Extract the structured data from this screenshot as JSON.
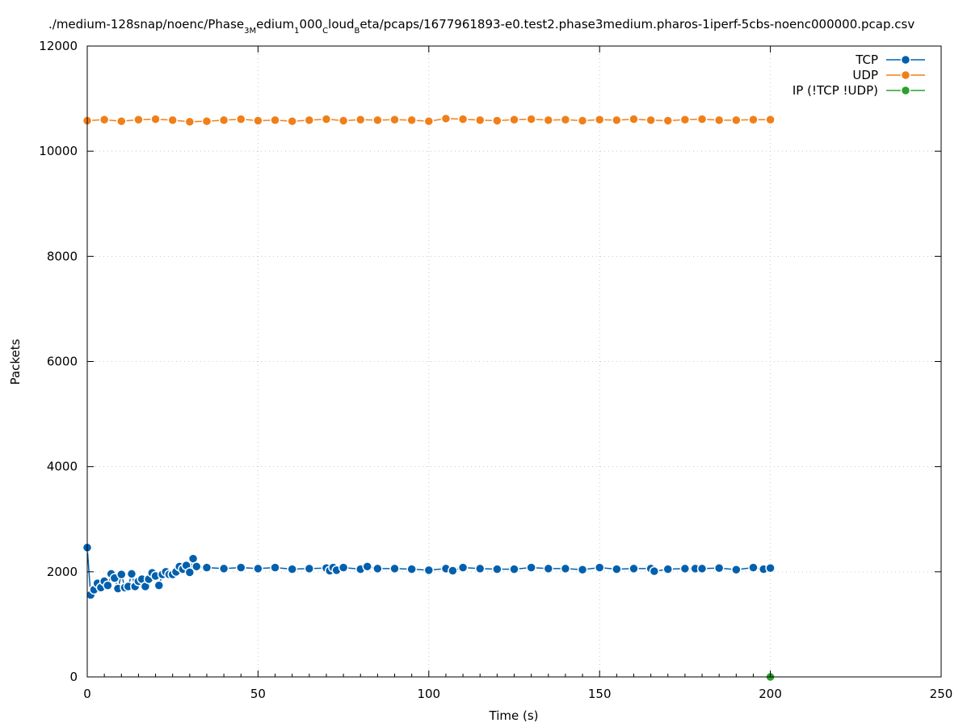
{
  "chart_data": {
    "type": "line",
    "title": "./medium-128snap/noenc/Phase_3Medium_1000_CloudBeta/pcaps/1677961893-e0.test2.phase3medium.pharos-1iperf-5cbs-noenc000000.pcap.csv",
    "title_parts": [
      {
        "t": "./medium-128snap/noenc/Phase",
        "sub": false
      },
      {
        "t": "3M",
        "sub": true
      },
      {
        "t": "edium",
        "sub": false
      },
      {
        "t": "1",
        "sub": true
      },
      {
        "t": "000",
        "sub": false
      },
      {
        "t": "C",
        "sub": true
      },
      {
        "t": "loud",
        "sub": false
      },
      {
        "t": "B",
        "sub": true
      },
      {
        "t": "eta/pcaps/1677961893-e0.test2.phase3medium.pharos-1iperf-5cbs-noenc000000.pcap.csv",
        "sub": false
      }
    ],
    "xlabel": "Time (s)",
    "ylabel": "Packets",
    "xlim": [
      0,
      250
    ],
    "ylim": [
      0,
      12000
    ],
    "xticks": [
      0,
      50,
      100,
      150,
      200,
      250
    ],
    "yticks": [
      0,
      2000,
      4000,
      6000,
      8000,
      10000,
      12000
    ],
    "grid": true,
    "legend": "top-right",
    "series": [
      {
        "name": "TCP",
        "color": "#0060ad",
        "x": [
          0,
          1,
          2,
          3,
          4,
          5,
          6,
          7,
          8,
          9,
          10,
          11,
          12,
          13,
          14,
          15,
          16,
          17,
          18,
          19,
          20,
          21,
          22,
          23,
          24,
          25,
          26,
          27,
          28,
          29,
          30,
          31,
          32,
          35,
          40,
          45,
          50,
          55,
          60,
          65,
          70,
          71,
          72,
          73,
          75,
          80,
          82,
          85,
          90,
          95,
          100,
          105,
          107,
          110,
          115,
          120,
          125,
          130,
          135,
          140,
          145,
          150,
          155,
          160,
          165,
          166,
          170,
          175,
          178,
          180,
          185,
          190,
          195,
          198,
          200
        ],
        "y": [
          2460,
          1560,
          1660,
          1780,
          1700,
          1820,
          1740,
          1960,
          1880,
          1680,
          1950,
          1700,
          1720,
          1960,
          1720,
          1820,
          1860,
          1720,
          1860,
          1980,
          1920,
          1740,
          1950,
          2000,
          1950,
          1950,
          2000,
          2100,
          2050,
          2120,
          1990,
          2250,
          2100,
          2080,
          2060,
          2080,
          2060,
          2080,
          2050,
          2060,
          2070,
          2020,
          2080,
          2030,
          2080,
          2050,
          2100,
          2060,
          2060,
          2050,
          2030,
          2060,
          2020,
          2080,
          2060,
          2050,
          2050,
          2080,
          2060,
          2060,
          2040,
          2080,
          2050,
          2060,
          2060,
          2010,
          2050,
          2060,
          2060,
          2060,
          2070,
          2040,
          2080,
          2050,
          2070
        ]
      },
      {
        "name": "UDP",
        "color": "#f07f19",
        "x": [
          0,
          5,
          10,
          15,
          20,
          25,
          30,
          35,
          40,
          45,
          50,
          55,
          60,
          65,
          70,
          75,
          80,
          85,
          90,
          95,
          100,
          105,
          110,
          115,
          120,
          125,
          130,
          135,
          140,
          145,
          150,
          155,
          160,
          165,
          170,
          175,
          180,
          185,
          190,
          195,
          200
        ],
        "y": [
          10580,
          10600,
          10570,
          10600,
          10610,
          10590,
          10560,
          10570,
          10590,
          10610,
          10580,
          10590,
          10570,
          10590,
          10610,
          10580,
          10600,
          10590,
          10600,
          10590,
          10570,
          10620,
          10610,
          10590,
          10580,
          10600,
          10610,
          10590,
          10600,
          10580,
          10600,
          10590,
          10610,
          10590,
          10580,
          10600,
          10610,
          10590,
          10590,
          10600,
          10600
        ]
      },
      {
        "name": "IP (!TCP  !UDP)",
        "color": "#2ca02c",
        "x": [
          200
        ],
        "y": [
          0
        ]
      }
    ]
  }
}
